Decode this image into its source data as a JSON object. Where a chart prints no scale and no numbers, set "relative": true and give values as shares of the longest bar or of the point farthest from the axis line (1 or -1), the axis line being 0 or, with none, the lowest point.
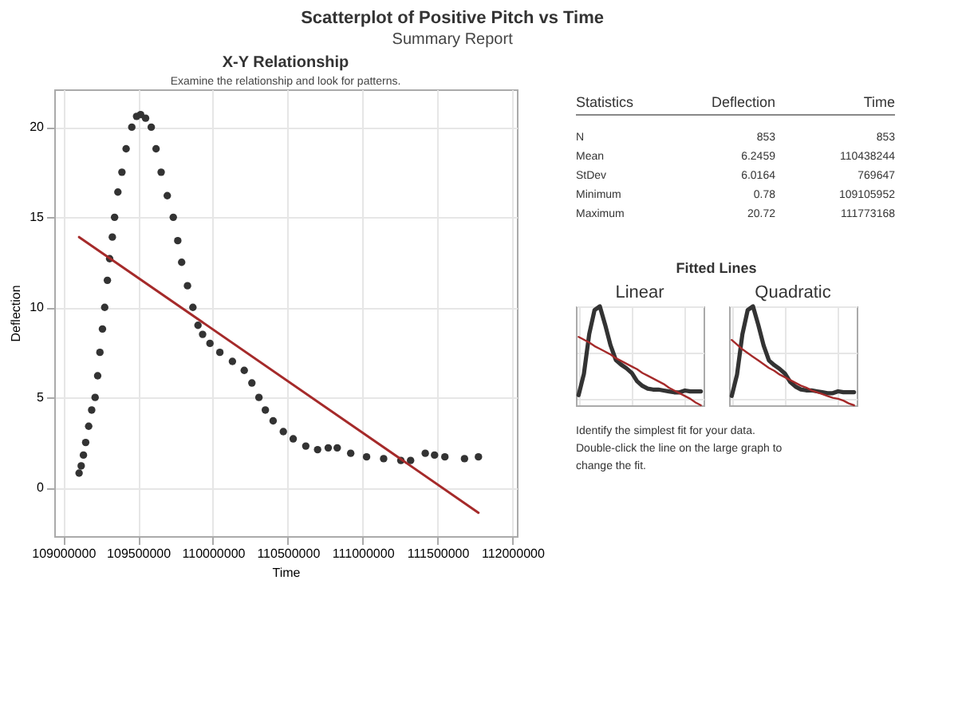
{
  "chart_data": [
    {
      "type": "other",
      "title": "Scatterplot of Positive Pitch vs Time",
      "subtitle": "Summary Report"
    },
    {
      "type": "scatter",
      "title": "X-Y Relationship",
      "subtitle": "Examine the relationship and look for patterns.",
      "xlabel": "Time",
      "ylabel": "Deflection",
      "xlim": [
        108940000,
        112030000
      ],
      "xticks": [
        109000000,
        109500000,
        110000000,
        110500000,
        111000000,
        111500000,
        112000000
      ],
      "ylim": [
        -2.7,
        22.1
      ],
      "yticks": [
        0,
        5,
        10,
        15,
        20
      ],
      "grid": true,
      "series": [
        {
          "marker": "circle",
          "color": "#333333",
          "x": [
            109105952,
            109120000,
            109135000,
            109150000,
            109170000,
            109190000,
            109213000,
            109230000,
            109245000,
            109262000,
            109277000,
            109295000,
            109310000,
            109328000,
            109343000,
            109365000,
            109392000,
            109420000,
            109458000,
            109490000,
            109517000,
            109550000,
            109588000,
            109620000,
            109654000,
            109695000,
            109735000,
            109765000,
            109791000,
            109830000,
            109866000,
            109900000,
            109931000,
            109980000,
            110046000,
            110130000,
            110209000,
            110260000,
            110307000,
            110350000,
            110402000,
            110470000,
            110536000,
            110620000,
            110699000,
            110770000,
            110830000,
            110920000,
            111026000,
            111140000,
            111255000,
            111320000,
            111418000,
            111480000,
            111549000,
            111680000,
            111773168
          ],
          "values": [
            0.8,
            1.2,
            1.8,
            2.5,
            3.4,
            4.3,
            5.0,
            6.2,
            7.5,
            8.8,
            10.0,
            11.5,
            12.7,
            13.9,
            15.0,
            16.4,
            17.5,
            18.8,
            20.0,
            20.6,
            20.7,
            20.5,
            20.0,
            18.8,
            17.5,
            16.2,
            15.0,
            13.7,
            12.5,
            11.2,
            10.0,
            9.0,
            8.5,
            8.0,
            7.5,
            7.0,
            6.5,
            5.8,
            5.0,
            4.3,
            3.7,
            3.1,
            2.7,
            2.3,
            2.1,
            2.2,
            2.2,
            1.9,
            1.7,
            1.6,
            1.5,
            1.5,
            1.9,
            1.8,
            1.7,
            1.6,
            1.7
          ]
        },
        {
          "type": "line",
          "color": "#a52a2a",
          "x": [
            109105952,
            111773168
          ],
          "values": [
            13.9,
            -1.4
          ]
        }
      ]
    },
    {
      "type": "other",
      "title": "Statistics",
      "categories": [
        "N",
        "Mean",
        "StDev",
        "Minimum",
        "Maximum"
      ],
      "data_labels": true,
      "series": [
        {
          "name": "Deflection",
          "values": [
            853,
            6.2459,
            6.0164,
            0.78,
            20.72
          ]
        },
        {
          "name": "Time",
          "values": [
            853,
            110438244,
            769647,
            109105952,
            111773168
          ]
        }
      ],
      "annotations": [
        "Fitted Lines",
        "Identify the simplest fit for your data.",
        "Double-click the line on the large graph to change the fit."
      ]
    },
    {
      "type": "line",
      "title": "Linear",
      "relative": true,
      "tick_labels": false,
      "grid": true,
      "categories": [
        null,
        null,
        null,
        null,
        null,
        null,
        null,
        null,
        null,
        null,
        null,
        null,
        null,
        null,
        null,
        null,
        null,
        null,
        null,
        null,
        null,
        null,
        null,
        null
      ],
      "series": [
        {
          "color": "#333333",
          "values": [
            0.04,
            0.27,
            0.7,
            0.96,
            1,
            0.8,
            0.58,
            0.42,
            0.37,
            0.33,
            0.28,
            0.19,
            0.14,
            0.11,
            0.1,
            0.1,
            0.09,
            0.08,
            0.07,
            0.07,
            0.09,
            0.08,
            0.08,
            0.08
          ]
        },
        {
          "type": "line",
          "color": "#a52a2a",
          "values": [
            0.67,
            0.64,
            0.61,
            0.57,
            0.54,
            0.51,
            0.48,
            0.44,
            0.41,
            0.38,
            0.35,
            0.32,
            0.28,
            0.25,
            0.22,
            0.19,
            0.16,
            0.12,
            0.09,
            0.06,
            0.03,
            0.0,
            -0.04,
            -0.07
          ]
        }
      ]
    },
    {
      "type": "line",
      "title": "Quadratic",
      "relative": true,
      "tick_labels": false,
      "grid": true,
      "categories": [
        null,
        null,
        null,
        null,
        null,
        null,
        null,
        null,
        null,
        null,
        null,
        null,
        null,
        null,
        null,
        null,
        null,
        null,
        null,
        null,
        null,
        null,
        null,
        null
      ],
      "series": [
        {
          "color": "#333333",
          "values": [
            0.04,
            0.27,
            0.7,
            0.96,
            1,
            0.8,
            0.58,
            0.42,
            0.37,
            0.33,
            0.28,
            0.19,
            0.14,
            0.11,
            0.1,
            0.1,
            0.09,
            0.08,
            0.07,
            0.07,
            0.09,
            0.08,
            0.08,
            0.08
          ]
        },
        {
          "type": "line",
          "color": "#a52a2a",
          "values": [
            0.64,
            0.59,
            0.54,
            0.5,
            0.46,
            0.42,
            0.38,
            0.34,
            0.31,
            0.27,
            0.24,
            0.21,
            0.18,
            0.15,
            0.13,
            0.1,
            0.08,
            0.06,
            0.04,
            0.02,
            0.01,
            -0.01,
            -0.04,
            -0.06
          ]
        }
      ]
    }
  ]
}
